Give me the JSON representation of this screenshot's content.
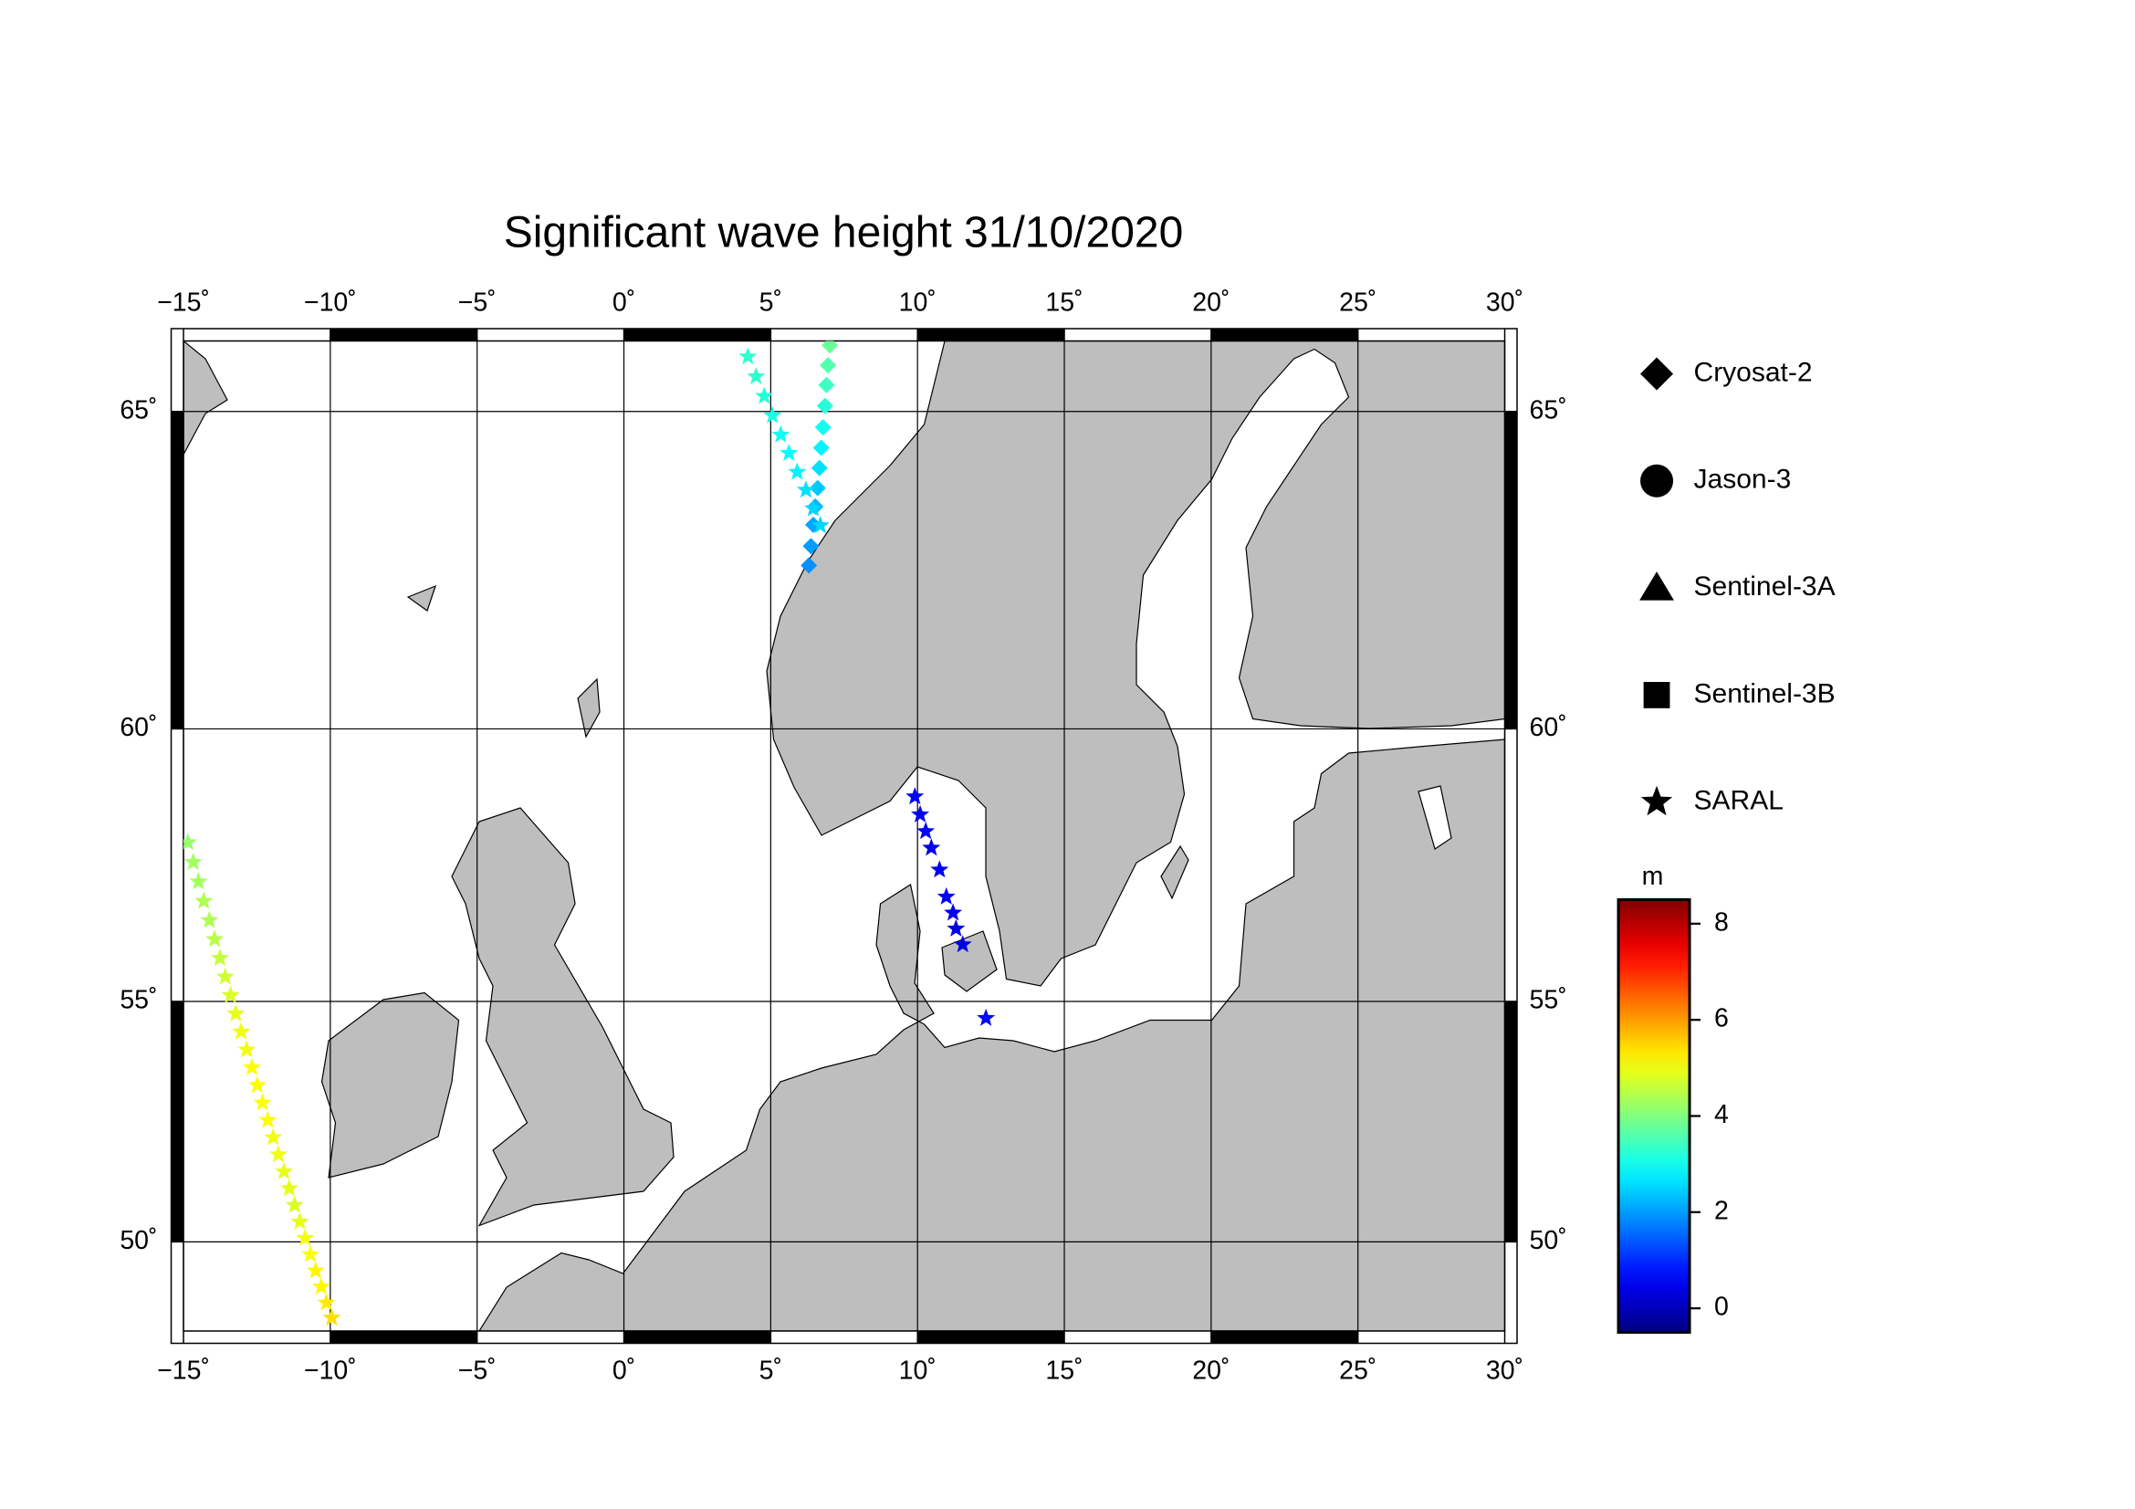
{
  "map": {
    "title": "Significant wave height 31/10/2020",
    "projection": "mercator",
    "xlim": [
      -15,
      30
    ],
    "ylim": [
      48,
      66
    ],
    "grid": true,
    "land_color": "#bebebe",
    "xticks": [
      {
        "value": -15,
        "label": "−15˚"
      },
      {
        "value": -10,
        "label": "−10˚"
      },
      {
        "value": -5,
        "label": "−5˚"
      },
      {
        "value": 0,
        "label": "0˚"
      },
      {
        "value": 5,
        "label": "5˚"
      },
      {
        "value": 10,
        "label": "10˚"
      },
      {
        "value": 15,
        "label": "15˚"
      },
      {
        "value": 20,
        "label": "20˚"
      },
      {
        "value": 25,
        "label": "25˚"
      },
      {
        "value": 30,
        "label": "30˚"
      }
    ],
    "yticks": [
      {
        "value": 50,
        "label": "50˚"
      },
      {
        "value": 55,
        "label": "55˚"
      },
      {
        "value": 60,
        "label": "60˚"
      },
      {
        "value": 65,
        "label": "65˚"
      }
    ],
    "colorbar": {
      "label": "m",
      "colormap": "jet",
      "clim": [
        -0.5,
        8.5
      ],
      "ticks": [
        0,
        2,
        4,
        6,
        8
      ]
    },
    "missions": [
      {
        "name": "Cryosat-2",
        "marker": "diamond",
        "lon": [
          7.01,
          6.95,
          6.9,
          6.85,
          6.78,
          6.72,
          6.66,
          6.6,
          6.52,
          6.45,
          6.37,
          6.3
        ],
        "lat": [
          65.94,
          65.66,
          65.38,
          65.08,
          64.77,
          64.47,
          64.17,
          63.87,
          63.59,
          63.31,
          62.98,
          62.68
        ],
        "values": [
          3.8,
          3.6,
          3.4,
          3.2,
          3.0,
          2.8,
          2.6,
          2.4,
          2.2,
          2.1,
          2.0,
          1.9
        ]
      },
      {
        "name": "Jason-3",
        "marker": "circle"
      },
      {
        "name": "Sentinel-3A",
        "marker": "triangle"
      },
      {
        "name": "Sentinel-3B",
        "marker": "square"
      },
      {
        "name": "SARAL",
        "marker": "star",
        "lon": [
          4.22,
          4.5,
          4.78,
          5.06,
          5.34,
          5.62,
          5.9,
          6.2,
          6.45,
          6.69,
          9.91,
          10.09,
          10.28,
          10.47,
          10.75,
          10.98,
          11.21,
          11.31,
          11.54,
          12.33,
          -14.85,
          -14.67,
          -14.49,
          -14.31,
          -14.12,
          -13.94,
          -13.76,
          -13.58,
          -13.4,
          -13.22,
          -13.04,
          -12.85,
          -12.67,
          -12.49,
          -12.31,
          -12.13,
          -11.95,
          -11.77,
          -11.58,
          -11.4,
          -11.22,
          -11.04,
          -10.86,
          -10.68,
          -10.5,
          -10.31,
          -10.13,
          -9.95
        ],
        "lat": [
          65.78,
          65.5,
          65.22,
          64.94,
          64.66,
          64.39,
          64.11,
          63.84,
          63.56,
          63.3,
          58.82,
          58.5,
          58.2,
          57.9,
          57.5,
          57.0,
          56.7,
          56.4,
          56.1,
          54.67,
          58.0,
          57.64,
          57.28,
          56.92,
          56.56,
          56.2,
          55.84,
          55.48,
          55.12,
          54.76,
          54.4,
          54.04,
          53.68,
          53.32,
          52.96,
          52.6,
          52.24,
          51.88,
          51.52,
          51.16,
          50.8,
          50.44,
          50.08,
          49.72,
          49.36,
          49.0,
          48.64,
          48.3
        ],
        "values": [
          3.3,
          3.3,
          3.2,
          3.1,
          3.0,
          2.9,
          2.8,
          2.6,
          2.5,
          2.5,
          0.6,
          0.5,
          0.5,
          0.4,
          0.5,
          0.6,
          0.5,
          0.4,
          0.4,
          0.7,
          4.2,
          4.3,
          4.3,
          4.4,
          4.4,
          4.5,
          4.6,
          4.7,
          4.8,
          4.9,
          5.0,
          5.0,
          5.1,
          5.1,
          5.1,
          5.1,
          5.0,
          5.0,
          4.9,
          4.9,
          4.8,
          4.9,
          5.0,
          5.1,
          5.2,
          5.2,
          5.3,
          5.4
        ]
      }
    ]
  }
}
